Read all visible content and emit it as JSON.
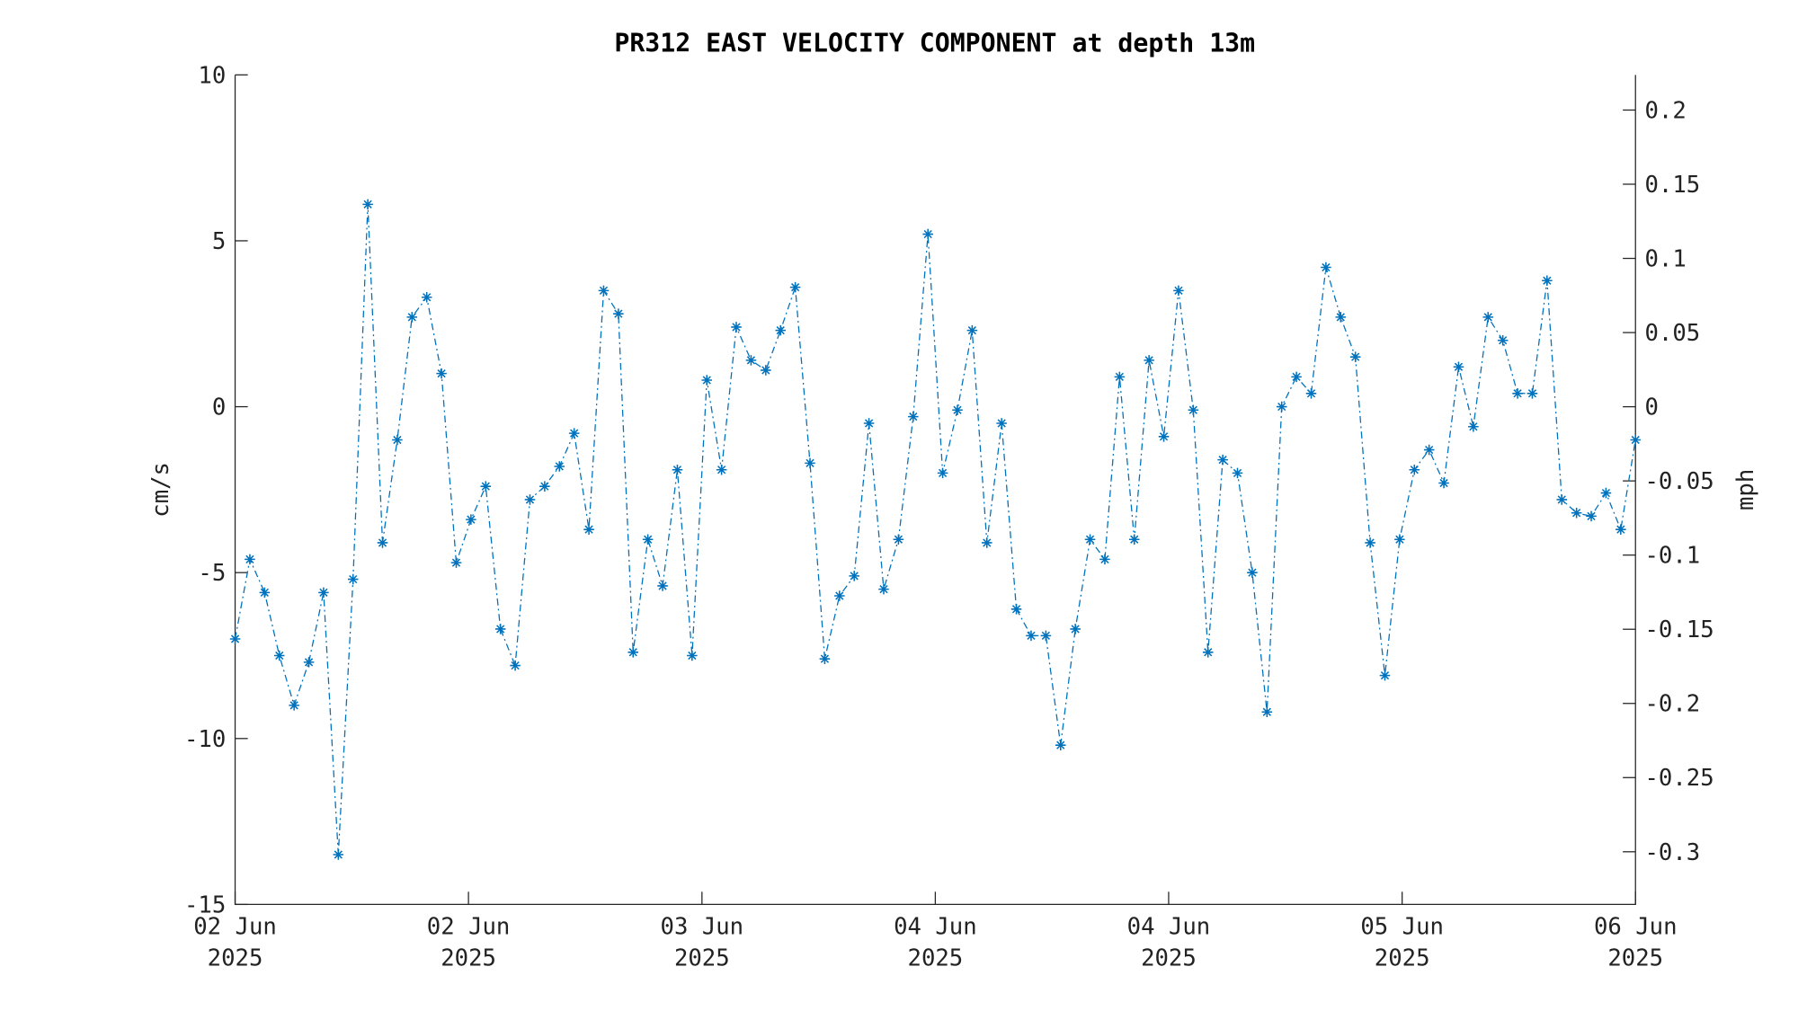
{
  "chart_data": {
    "type": "line",
    "title": "PR312 EAST VELOCITY COMPONENT at depth 13m",
    "y_label": "cm/s",
    "y2_label": "mph",
    "x": [
      0,
      1,
      2,
      3,
      4,
      5,
      6,
      7,
      8,
      9,
      10,
      11,
      12,
      13,
      14,
      15,
      16,
      17,
      18,
      19,
      20,
      21,
      22,
      23,
      24,
      25,
      26,
      27,
      28,
      29,
      30,
      31,
      32,
      33,
      34,
      35,
      36,
      37,
      38,
      39,
      40,
      41,
      42,
      43,
      44,
      45,
      46,
      47,
      48,
      49,
      50,
      51,
      52,
      53,
      54,
      55,
      56,
      57,
      58,
      59,
      60,
      61,
      62,
      63,
      64,
      65,
      66,
      67,
      68,
      69,
      70,
      71,
      72,
      73,
      74,
      75,
      76,
      77,
      78,
      79,
      80,
      81,
      82,
      83,
      84,
      85,
      86,
      87,
      88,
      89,
      90,
      91,
      92,
      93,
      94,
      95
    ],
    "series": [
      {
        "name": "East velocity",
        "color": "#0072bd",
        "values": [
          -7.0,
          -4.6,
          -5.6,
          -7.5,
          -9.0,
          -7.7,
          -5.6,
          -13.5,
          -5.2,
          6.1,
          -4.1,
          -1.0,
          2.7,
          3.3,
          1.0,
          -4.7,
          -3.4,
          -2.4,
          -6.7,
          -7.8,
          -2.8,
          -2.4,
          -1.8,
          -0.8,
          -3.7,
          3.5,
          2.8,
          -7.4,
          -4.0,
          -5.4,
          -1.9,
          -7.5,
          0.8,
          -1.9,
          2.4,
          1.4,
          1.1,
          2.3,
          3.6,
          -1.7,
          -7.6,
          -5.7,
          -5.1,
          -0.5,
          -5.5,
          -4.0,
          -0.3,
          5.2,
          -2.0,
          -0.1,
          2.3,
          -4.1,
          -0.5,
          -6.1,
          -6.9,
          -6.9,
          -10.2,
          -6.7,
          -4.0,
          -4.6,
          0.9,
          -4.0,
          1.4,
          -0.9,
          3.5,
          -0.1,
          -7.4,
          -1.6,
          -2.0,
          -5.0,
          -9.2,
          0.0,
          0.9,
          0.4,
          4.2,
          2.7,
          1.5,
          -4.1,
          -8.1,
          -4.0,
          -1.9,
          -1.3,
          -2.3,
          1.2,
          -0.6,
          2.7,
          2.0,
          0.4,
          0.4,
          3.8,
          -2.8,
          -3.2,
          -3.3,
          -2.6,
          -3.7,
          -1.0
        ]
      }
    ],
    "xlim": [
      0,
      95
    ],
    "xticks": [
      {
        "value": 0,
        "label": "02 Jun\n2025"
      },
      {
        "value": 15.83,
        "label": "02 Jun\n2025"
      },
      {
        "value": 31.67,
        "label": "03 Jun\n2025"
      },
      {
        "value": 47.5,
        "label": "04 Jun\n2025"
      },
      {
        "value": 63.33,
        "label": "04 Jun\n2025"
      },
      {
        "value": 79.17,
        "label": "05 Jun\n2025"
      },
      {
        "value": 95,
        "label": "06 Jun\n2025"
      }
    ],
    "ylim": [
      -15,
      10
    ],
    "yticks": [
      -15,
      -10,
      -5,
      0,
      5,
      10
    ],
    "y2lim": [
      -0.3355,
      0.2237
    ],
    "y2ticks": [
      -0.3,
      -0.25,
      -0.2,
      -0.15,
      -0.1,
      -0.05,
      0,
      0.05,
      0.1,
      0.15,
      0.2
    ],
    "grid": false
  }
}
